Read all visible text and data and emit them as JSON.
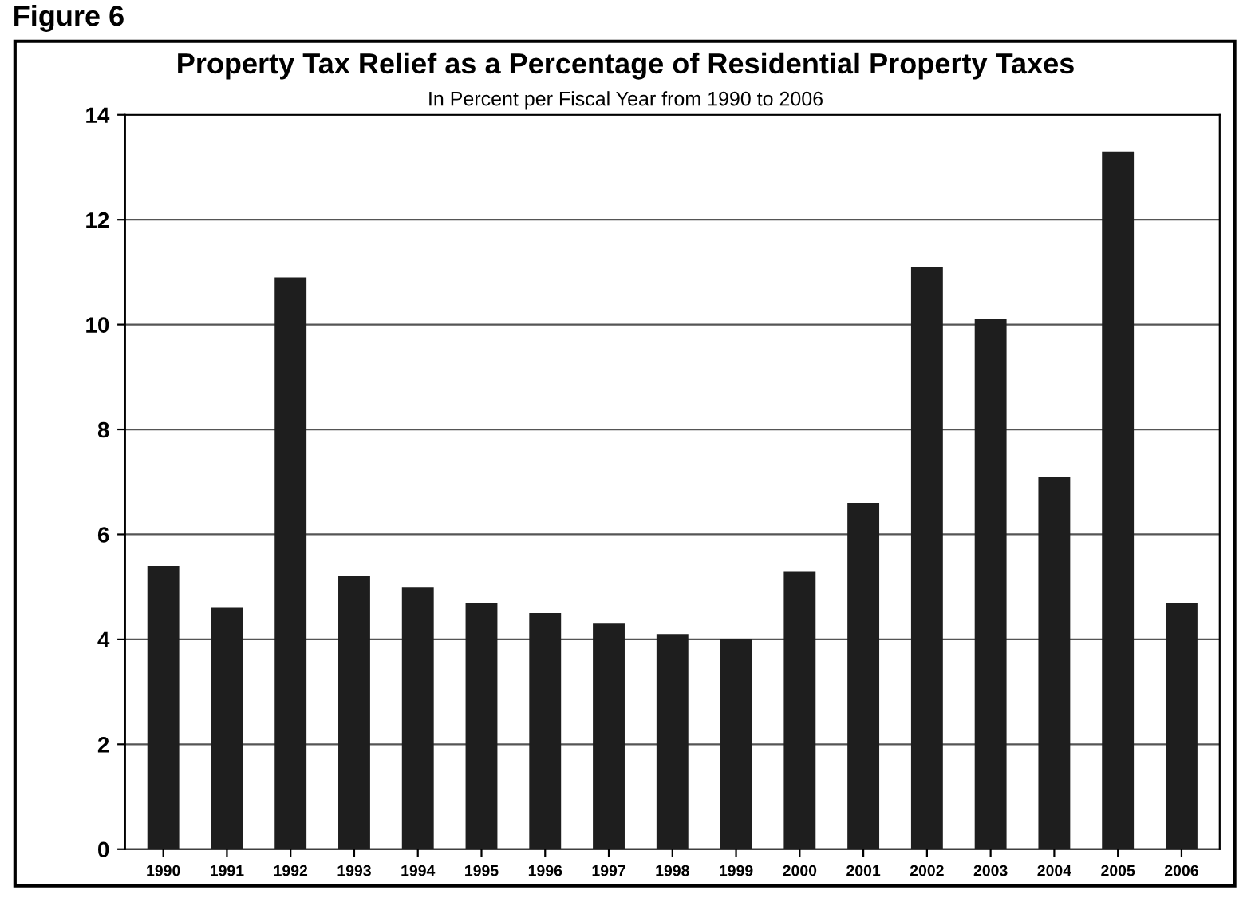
{
  "chart_data": {
    "type": "bar",
    "title": "Property Tax Relief as a Percentage of Residential Property Taxes",
    "subtitle": "In Percent per Fiscal Year from 1990 to 2006",
    "annotations": [
      "Figure 6"
    ],
    "categories": [
      "1990",
      "1991",
      "1992",
      "1993",
      "1994",
      "1995",
      "1996",
      "1997",
      "1998",
      "1999",
      "2000",
      "2001",
      "2002",
      "2003",
      "2004",
      "2005",
      "2006"
    ],
    "values": [
      5.4,
      4.6,
      10.9,
      5.2,
      5.0,
      4.7,
      4.5,
      4.3,
      4.1,
      4.0,
      5.3,
      6.6,
      11.1,
      10.1,
      7.1,
      13.3,
      4.7
    ],
    "color": "#1e1e1e",
    "ylim": [
      0,
      14
    ],
    "yticks": [
      0,
      2,
      4,
      6,
      8,
      10,
      12,
      14
    ],
    "grid": "y",
    "legend": false
  }
}
